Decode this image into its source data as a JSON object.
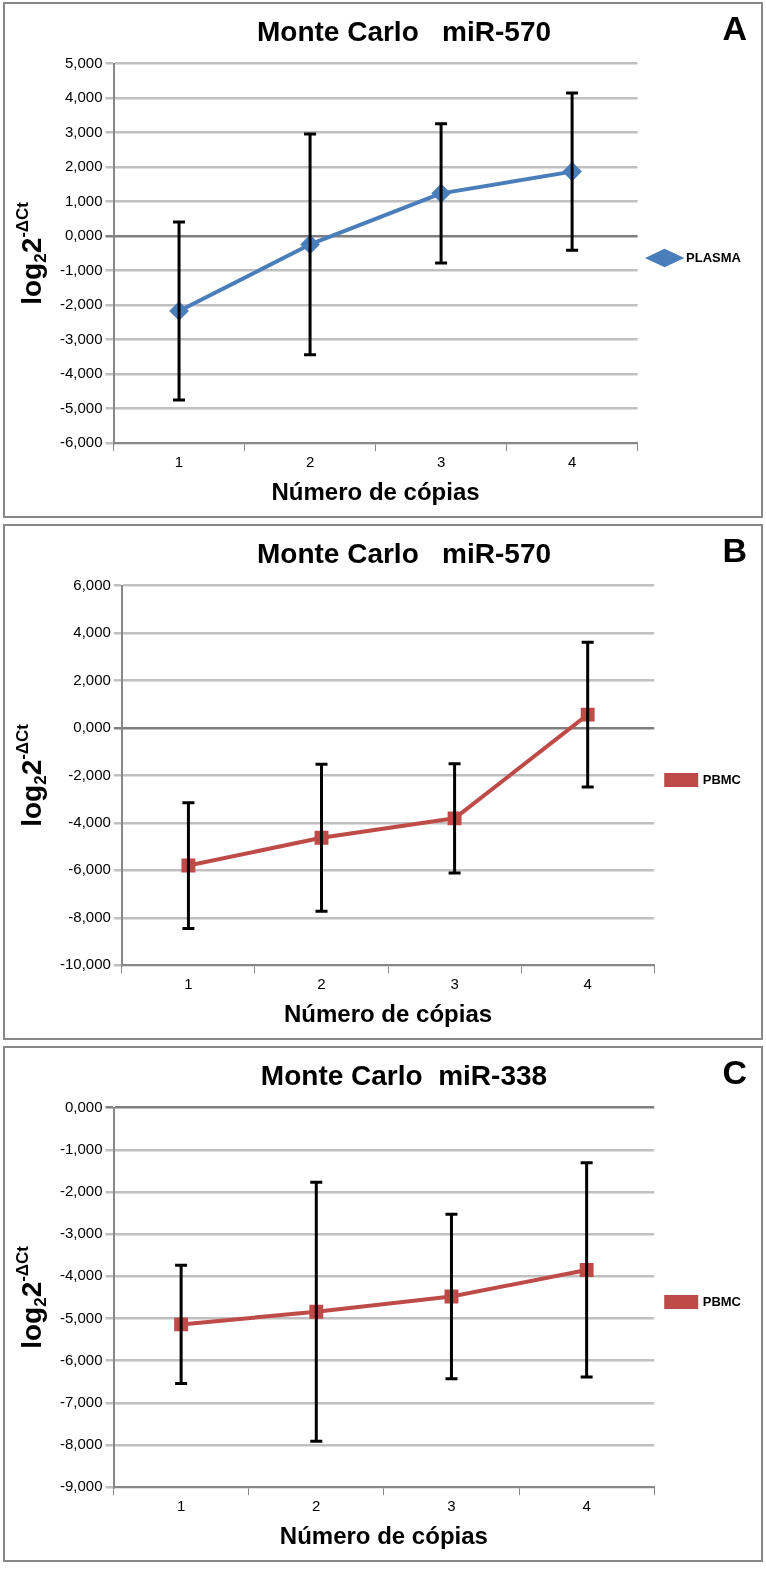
{
  "chart_data": [
    {
      "type": "line",
      "title": "Monte Carlo   miR-570",
      "xlabel": "Número de cópias",
      "ylabel": "log$_{2}$2$^{-ΔCt}$",
      "categories": [
        "1",
        "2",
        "3",
        "4"
      ],
      "series": [
        {
          "name": "PLASMA",
          "color": "#4a7ebb",
          "values": [
            -2.17,
            -0.24,
            1.24,
            1.87
          ],
          "errors": [
            2.58,
            3.2,
            2.02,
            2.28
          ]
        }
      ],
      "ylim": [
        -6,
        5
      ],
      "yticks": [
        {
          "value": -6,
          "label": "-6,000"
        },
        {
          "value": -5,
          "label": "-5,000"
        },
        {
          "value": -4,
          "label": "-4,000"
        },
        {
          "value": -3,
          "label": "-3,000"
        },
        {
          "value": -2,
          "label": "-2,000"
        },
        {
          "value": -1,
          "label": "-1,000"
        },
        {
          "value": 0,
          "label": "0,000"
        },
        {
          "value": 1,
          "label": "1,000"
        },
        {
          "value": 2,
          "label": "2,000"
        },
        {
          "value": 3,
          "label": "3,000"
        },
        {
          "value": 4,
          "label": "4,000"
        },
        {
          "value": 5,
          "label": "5,000"
        }
      ],
      "grid": "y",
      "legend": "right",
      "marker": "diamond",
      "annotations": [
        "A"
      ]
    },
    {
      "type": "line",
      "title": "Monte Carlo   miR-570",
      "xlabel": "Número de cópias",
      "ylabel": "log$_{2}$2$^{-ΔCt}$",
      "categories": [
        "1",
        "2",
        "3",
        "4"
      ],
      "series": [
        {
          "name": "PBMC",
          "color": "#be4b48",
          "values": [
            -5.8,
            -4.63,
            -3.81,
            0.56
          ],
          "errors": [
            2.65,
            3.1,
            2.3,
            3.05
          ]
        }
      ],
      "ylim": [
        -10,
        6
      ],
      "yticks": [
        {
          "value": -10,
          "label": "-10,000"
        },
        {
          "value": -8,
          "label": "-8,000"
        },
        {
          "value": -6,
          "label": "-6,000"
        },
        {
          "value": -4,
          "label": "-4,000"
        },
        {
          "value": -2,
          "label": "-2,000"
        },
        {
          "value": 0,
          "label": "0,000"
        },
        {
          "value": 2,
          "label": "2,000"
        },
        {
          "value": 4,
          "label": "4,000"
        },
        {
          "value": 6,
          "label": "6,000"
        }
      ],
      "grid": "y",
      "legend": "right",
      "marker": "square",
      "annotations": [
        "B"
      ]
    },
    {
      "type": "line",
      "title": "Monte Carlo  miR-338",
      "xlabel": "Número de cópias",
      "ylabel": "log$_{2}$2$^{-ΔCt}$",
      "categories": [
        "1",
        "2",
        "3",
        "4"
      ],
      "series": [
        {
          "name": "PBMC",
          "color": "#be4b48",
          "values": [
            -5.14,
            -4.84,
            -4.48,
            -3.85
          ],
          "errors": [
            1.4,
            3.07,
            1.95,
            2.54
          ]
        }
      ],
      "ylim": [
        -9,
        0
      ],
      "yticks": [
        {
          "value": -9,
          "label": "-9,000"
        },
        {
          "value": -8,
          "label": "-8,000"
        },
        {
          "value": -7,
          "label": "-7,000"
        },
        {
          "value": -6,
          "label": "-6,000"
        },
        {
          "value": -5,
          "label": "-5,000"
        },
        {
          "value": -4,
          "label": "-4,000"
        },
        {
          "value": -3,
          "label": "-3,000"
        },
        {
          "value": -2,
          "label": "-2,000"
        },
        {
          "value": -1,
          "label": "-1,000"
        },
        {
          "value": 0,
          "label": "0,000"
        }
      ],
      "grid": "y",
      "legend": "right",
      "marker": "square",
      "annotations": [
        "C"
      ]
    }
  ]
}
